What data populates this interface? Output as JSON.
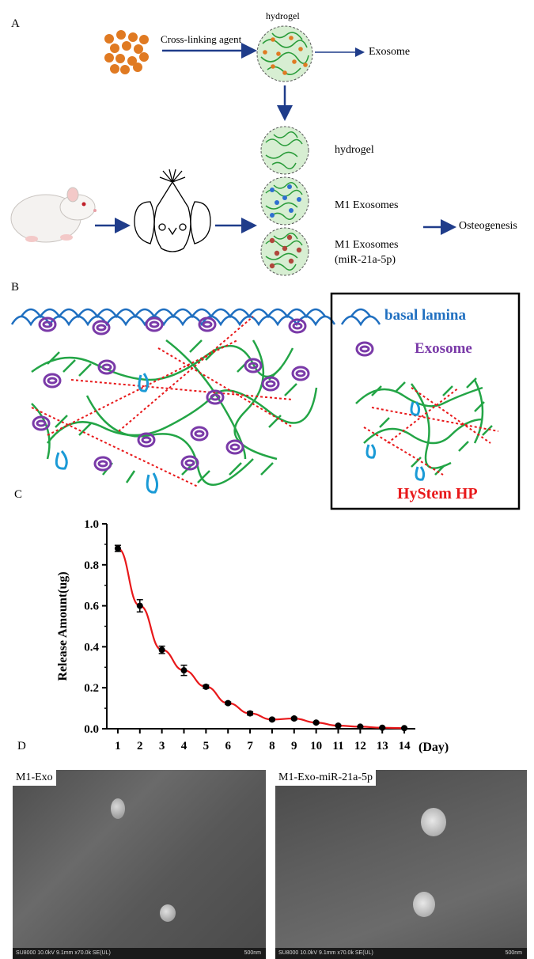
{
  "panels": {
    "a": "A",
    "b": "B",
    "c": "C",
    "d": "D"
  },
  "panel_a": {
    "crosslink_label": "Cross-linking agent",
    "hydrogel_top_label": "hydrogel",
    "exosome_label": "Exosome",
    "hydrogel_label": "hydrogel",
    "m1_exosomes_label": "M1 Exosomes",
    "m1_mir_label_1": "M1 Exosomes",
    "m1_mir_label_2": "(miR-21a-5p)",
    "osteogenesis_label": "Osteogenesis",
    "colors": {
      "arrow": "#1f3c8a",
      "particle": "#e07a22",
      "hydrogel_fill": "#d7eed2",
      "strand": "#2a9c3a",
      "blue_dot": "#2f6fd0",
      "red_dot": "#b0463c"
    }
  },
  "panel_b": {
    "legend_basal": "basal lamina",
    "legend_exosome": "Exosome",
    "legend_hystem": "HyStem HP",
    "colors": {
      "basal": "#1f6fc0",
      "exosome": "#7a3aa8",
      "hystem": "#e8181a",
      "strand": "#23a546",
      "loop": "#1a9ad6"
    }
  },
  "chart_data": {
    "type": "line",
    "title": "",
    "xlabel": "(Day)",
    "ylabel": "Release Amount(ug)",
    "x": [
      1,
      2,
      3,
      4,
      5,
      6,
      7,
      8,
      9,
      10,
      11,
      12,
      13,
      14
    ],
    "series": [
      {
        "values": [
          0.88,
          0.6,
          0.385,
          0.285,
          0.205,
          0.125,
          0.075,
          0.045,
          0.05,
          0.03,
          0.015,
          0.01,
          0.005,
          0.003
        ],
        "errors": [
          0.015,
          0.03,
          0.018,
          0.025,
          0.008,
          0.006,
          0.008,
          0.005,
          0.006,
          0.004,
          0.003,
          0.002,
          0.002,
          0.002
        ],
        "color": "#e8181a"
      }
    ],
    "xticks": [
      "1",
      "2",
      "3",
      "4",
      "5",
      "6",
      "7",
      "8",
      "9",
      "10",
      "11",
      "12",
      "13",
      "14"
    ],
    "yticks": [
      "0.0",
      "0.2",
      "0.4",
      "0.6",
      "0.8",
      "1.0"
    ],
    "ylim": [
      0,
      1.0
    ],
    "xlim": [
      0.5,
      14.5
    ],
    "grid": false
  },
  "panel_d": {
    "left_title": "M1-Exo",
    "right_title": "M1-Exo-miR-21a-5p",
    "footer": "SU8000 10.0kV 9.1mm x70.0k SE(UL)",
    "scale": "500nm"
  }
}
